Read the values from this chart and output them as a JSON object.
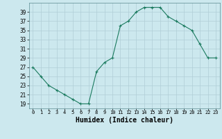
{
  "x": [
    0,
    1,
    2,
    3,
    4,
    5,
    6,
    7,
    8,
    9,
    10,
    11,
    12,
    13,
    14,
    15,
    16,
    17,
    18,
    19,
    20,
    21,
    22,
    23
  ],
  "y": [
    27,
    25,
    23,
    22,
    21,
    20,
    19,
    19,
    26,
    28,
    29,
    36,
    37,
    39,
    40,
    40,
    40,
    38,
    37,
    36,
    35,
    32,
    29,
    29
  ],
  "line_color": "#1a7a5e",
  "marker": "+",
  "marker_color": "#1a7a5e",
  "bg_color": "#cce8ee",
  "grid_color": "#b0ced6",
  "xlabel": "Humidex (Indice chaleur)",
  "xlabel_fontsize": 7,
  "ylabel_ticks": [
    19,
    21,
    23,
    25,
    27,
    29,
    31,
    33,
    35,
    37,
    39
  ],
  "xlim": [
    -0.5,
    23.5
  ],
  "ylim": [
    18.0,
    41.0
  ]
}
